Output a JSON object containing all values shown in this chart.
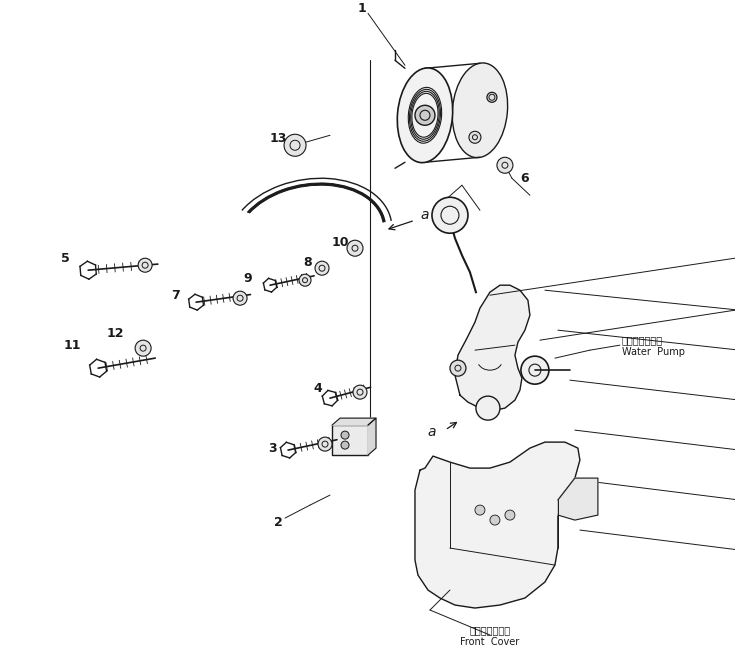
{
  "bg_color": "#ffffff",
  "line_color": "#1a1a1a",
  "fig_width": 7.35,
  "fig_height": 6.68,
  "dpi": 100,
  "water_pump_label_jp": "ウォータポンプ",
  "water_pump_label_en": "Water  Pump",
  "front_cover_label_jp": "フロントカバー",
  "front_cover_label_en": "Front  Cover"
}
